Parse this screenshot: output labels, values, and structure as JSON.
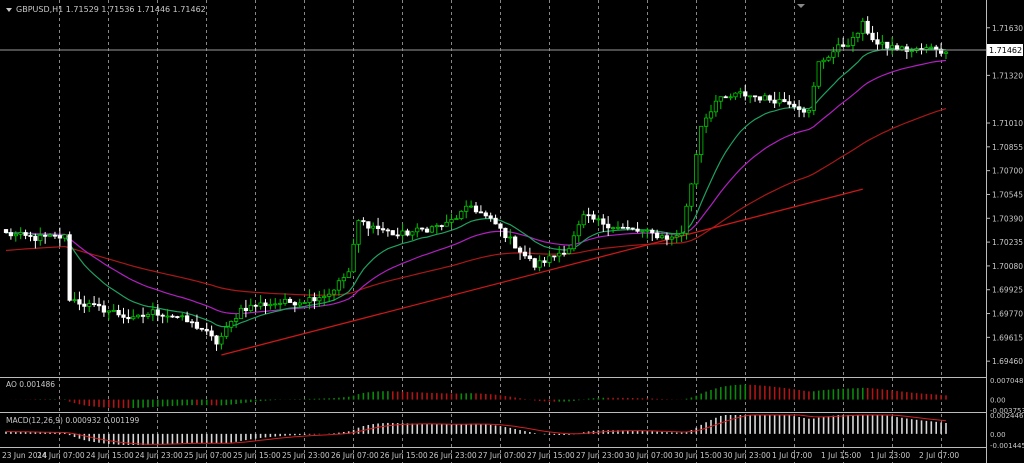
{
  "main": {
    "symbol_line": "GBPUSD,H1  1.71529 1.71536 1.71446 1.71462",
    "current_price": "1.71462",
    "price_ticks": [
      "1.71630",
      "1.71320",
      "1.71010",
      "1.70855",
      "1.70700",
      "1.70545",
      "1.70390",
      "1.70235",
      "1.70080",
      "1.69925",
      "1.69770",
      "1.69615",
      "1.69460"
    ],
    "y_range": [
      1.6937,
      1.717
    ]
  },
  "ao": {
    "label": "AO 0.001486",
    "ticks": [
      "0.007048",
      "0.00",
      "-0.003753"
    ],
    "y_range": [
      -0.003753,
      0.007048
    ]
  },
  "macd": {
    "label": "MACD(12,26,9) 0.000932 0.001199",
    "ticks": [
      "0.002446",
      "0.00",
      "-0.001445"
    ],
    "y_range": [
      -0.001445,
      0.002446
    ]
  },
  "time_labels": [
    "23 Jun 2014",
    "24 Jun 07:00",
    "24 Jun 15:00",
    "24 Jun 23:00",
    "25 Jun 07:00",
    "25 Jun 15:00",
    "25 Jun 23:00",
    "26 Jun 07:00",
    "26 Jun 15:00",
    "26 Jun 23:00",
    "27 Jun 07:00",
    "27 Jun 15:00",
    "27 Jun 23:00",
    "30 Jun 07:00",
    "30 Jun 15:00",
    "30 Jun 23:00",
    "1 Jul 07:00",
    "1 Jul 15:00",
    "1 Jul 23:00",
    "2 Jul 07:00"
  ],
  "colors": {
    "background": "#000000",
    "grid": "#b4b4b4",
    "bull": "#00c800",
    "bear": "#ffffff",
    "ma_fast": "#1fa060",
    "ma_mid": "#b020c0",
    "ma_slow": "#a81818",
    "trend": "#c81818",
    "ao_up": "#0a8a0a",
    "ao_down": "#b01414",
    "macd_signal": "#d02020",
    "text": "#c8c8c8"
  },
  "chart_data": {
    "type": "candlestick",
    "timeframe": "H1",
    "close_anchors": [
      [
        0,
        1.7029
      ],
      [
        6,
        1.7026
      ],
      [
        12,
        1.7027
      ],
      [
        13,
        1.6987
      ],
      [
        16,
        1.6983
      ],
      [
        22,
        1.6978
      ],
      [
        26,
        1.6973
      ],
      [
        30,
        1.6978
      ],
      [
        35,
        1.6975
      ],
      [
        40,
        1.6967
      ],
      [
        43,
        1.6958
      ],
      [
        44,
        1.6962
      ],
      [
        48,
        1.698
      ],
      [
        52,
        1.6983
      ],
      [
        60,
        1.6985
      ],
      [
        66,
        1.699
      ],
      [
        70,
        1.7004
      ],
      [
        72,
        1.7037
      ],
      [
        80,
        1.7028
      ],
      [
        90,
        1.7035
      ],
      [
        95,
        1.7047
      ],
      [
        100,
        1.7035
      ],
      [
        108,
        1.7008
      ],
      [
        115,
        1.702
      ],
      [
        118,
        1.704
      ],
      [
        125,
        1.7033
      ],
      [
        130,
        1.703
      ],
      [
        136,
        1.7026
      ],
      [
        138,
        1.703
      ],
      [
        140,
        1.7062
      ],
      [
        142,
        1.71
      ],
      [
        145,
        1.7115
      ],
      [
        150,
        1.712
      ],
      [
        155,
        1.7117
      ],
      [
        160,
        1.7115
      ],
      [
        164,
        1.7108
      ],
      [
        166,
        1.714
      ],
      [
        170,
        1.715
      ],
      [
        173,
        1.7155
      ],
      [
        175,
        1.7165
      ],
      [
        178,
        1.7152
      ],
      [
        185,
        1.7148
      ],
      [
        190,
        1.715
      ],
      [
        192,
        1.7146
      ]
    ],
    "n_bars": 193,
    "moving_averages": [
      {
        "period": "fast",
        "color": "#1fa060"
      },
      {
        "period": "mid",
        "color": "#b020c0"
      },
      {
        "period": "slow",
        "color": "#a81818"
      }
    ],
    "trend_line": {
      "from": [
        44,
        1.695
      ],
      "to": [
        175,
        1.7058
      ]
    }
  }
}
